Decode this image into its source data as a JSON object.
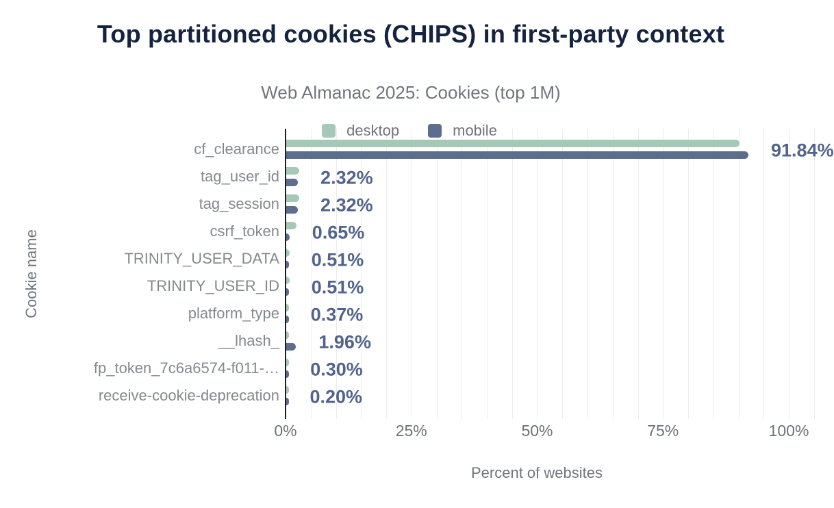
{
  "header": {
    "title": "Top partitioned cookies (CHIPS) in first-party context",
    "subtitle": "Web Almanac 2025: Cookies (top 1M)"
  },
  "legend": [
    {
      "label": "desktop",
      "color": "#a6c9b7"
    },
    {
      "label": "mobile",
      "color": "#5d6d8e"
    }
  ],
  "colors": {
    "desktop_bar": "#a6c9b7",
    "mobile_bar": "#5d6d8e",
    "value_label": "#52648c",
    "title": "#152240",
    "axis_line": "#1c1c1c",
    "gridline": "#ededf0"
  },
  "chart_data": {
    "type": "bar",
    "orientation": "horizontal",
    "title": "Top partitioned cookies (CHIPS) in first-party context",
    "subtitle": "Web Almanac 2025: Cookies (top 1M)",
    "xlabel": "Percent of websites",
    "ylabel": "Cookie name",
    "xlim": [
      0,
      100
    ],
    "x_ticks": [
      "0%",
      "25%",
      "50%",
      "75%",
      "100%"
    ],
    "grid": "vertical minor gridlines every 5%",
    "legend_position": "top-center",
    "categories": [
      "cf_clearance",
      "tag_user_id",
      "tag_session",
      "csrf_token",
      "TRINITY_USER_DATA",
      "TRINITY_USER_ID",
      "platform_type",
      "__lhash_",
      "fp_token_7c6a6574-f011-…",
      "receive-cookie-deprecation"
    ],
    "series": [
      {
        "name": "desktop",
        "color": "#a6c9b7",
        "values": [
          90.1,
          2.6,
          2.6,
          2.0,
          0.7,
          0.7,
          0.55,
          0.5,
          0.4,
          0.28
        ]
      },
      {
        "name": "mobile",
        "color": "#5d6d8e",
        "values": [
          91.84,
          2.32,
          2.32,
          0.65,
          0.51,
          0.51,
          0.37,
          1.96,
          0.3,
          0.2
        ]
      }
    ],
    "value_labels": [
      "91.84%",
      "2.32%",
      "2.32%",
      "0.65%",
      "0.51%",
      "0.51%",
      "0.37%",
      "1.96%",
      "0.30%",
      "0.20%"
    ],
    "value_label_series": "mobile"
  }
}
